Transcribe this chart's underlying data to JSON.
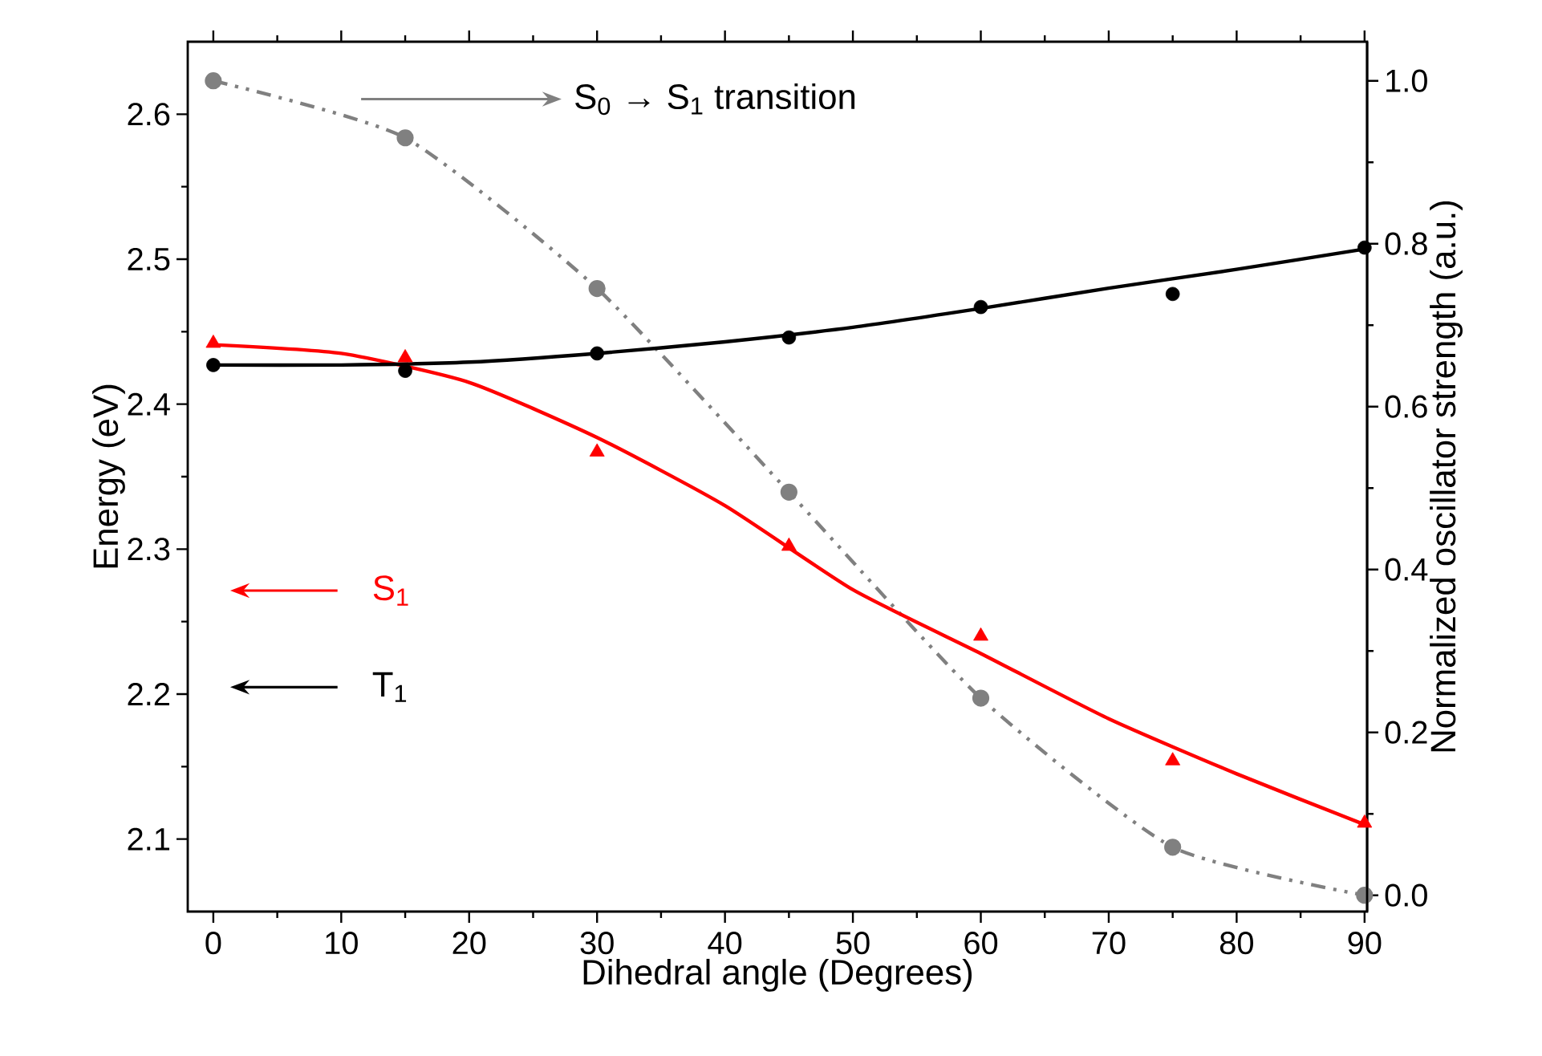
{
  "chart_data": {
    "type": "scatter",
    "xlabel": "Dihedral angle (Degrees)",
    "ylabel": "Energy (eV)",
    "y2label": "Normalized oscillator strength (a.u.)",
    "xlim": [
      -2,
      90.2
    ],
    "ylim": [
      2.05,
      2.65
    ],
    "y2lim": [
      -0.02,
      1.048
    ],
    "xticks": [
      0,
      10,
      20,
      30,
      40,
      50,
      60,
      70,
      80,
      90
    ],
    "yticks": [
      2.1,
      2.2,
      2.3,
      2.4,
      2.5,
      2.6
    ],
    "y2ticks": [
      {
        "value": 0,
        "label": "0.0"
      },
      0.2,
      0.4,
      0.6,
      0.8,
      {
        "value": 1,
        "label": "1.0"
      }
    ],
    "grid": false,
    "legend": "left",
    "series": [
      {
        "name": "S$_{1}$",
        "color": "#ff0000",
        "marker": "triangle",
        "x": [
          0,
          15,
          30,
          45,
          60,
          75,
          90
        ],
        "values": [
          2.442,
          2.432,
          2.367,
          2.302,
          2.24,
          2.154,
          2.111
        ]
      },
      {
        "type": "line",
        "color": "#ff0000",
        "marker": "none",
        "line_style": "solid",
        "x": [
          0,
          10,
          20,
          30,
          40,
          50,
          60,
          70,
          80,
          90
        ],
        "values": [
          2.441,
          2.435,
          2.415,
          2.377,
          2.33,
          2.272,
          2.228,
          2.183,
          2.145,
          2.11
        ]
      },
      {
        "name": "T$_{1}$",
        "color": "#000000",
        "marker": "circle",
        "x": [
          0,
          15,
          30,
          45,
          60,
          75,
          90
        ],
        "values": [
          2.427,
          2.423,
          2.435,
          2.446,
          2.467,
          2.476,
          2.508
        ]
      },
      {
        "type": "line",
        "color": "#000000",
        "marker": "none",
        "line_style": "solid",
        "x": [
          0,
          10,
          20,
          30,
          40,
          50,
          60,
          70,
          80,
          90
        ],
        "values": [
          2.427,
          2.427,
          2.429,
          2.435,
          2.443,
          2.453,
          2.466,
          2.48,
          2.493,
          2.507
        ]
      },
      {
        "name": "S$_{0}$ → S$_{1}$ transition",
        "type": "line",
        "axis": "y2",
        "color": "#808080",
        "marker": "circle",
        "line_style": "dashdotdotted",
        "x": [
          0,
          15,
          30,
          45,
          60,
          75,
          90
        ],
        "values": [
          1.0,
          0.93,
          0.745,
          0.495,
          0.242,
          0.059,
          0.0
        ]
      }
    ]
  }
}
